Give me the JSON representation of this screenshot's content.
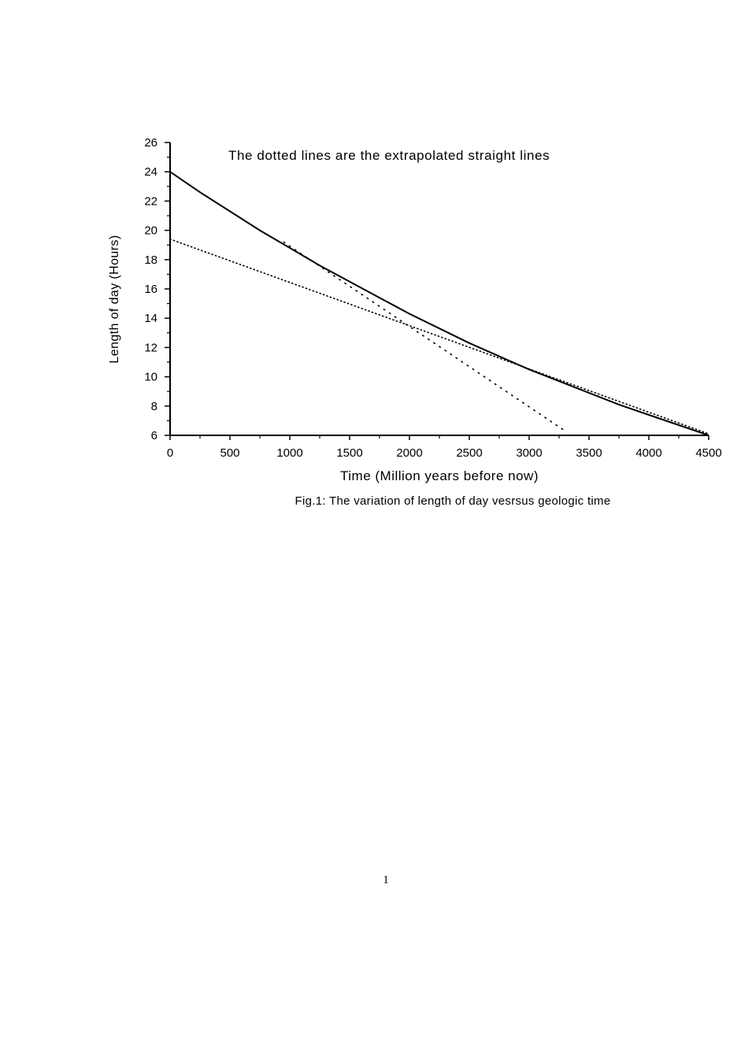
{
  "chart_data": {
    "type": "line",
    "annotation": "The dotted lines are the extrapolated straight lines",
    "xlabel": "Time (Million years before now)",
    "ylabel": "Length of day (Hours)",
    "caption": "Fig.1: The variation of length of day vesrsus geologic time",
    "xlim": [
      0,
      4500
    ],
    "ylim": [
      6,
      26
    ],
    "xticks": [
      0,
      500,
      1000,
      1500,
      2000,
      2500,
      3000,
      3500,
      4000,
      4500
    ],
    "yticks": [
      6,
      8,
      10,
      12,
      14,
      16,
      18,
      20,
      22,
      24,
      26
    ],
    "grid": false,
    "series": [
      {
        "style": "solid",
        "x": [
          0,
          250,
          500,
          750,
          1000,
          1250,
          1500,
          1750,
          2000,
          2250,
          2500,
          2750,
          3000,
          3250,
          3500,
          3750,
          4000,
          4250,
          4500
        ],
        "y": [
          24.0,
          22.6,
          21.3,
          20.0,
          18.8,
          17.6,
          16.5,
          15.4,
          14.3,
          13.3,
          12.3,
          11.4,
          10.5,
          9.7,
          8.9,
          8.1,
          7.4,
          6.7,
          6.0
        ]
      },
      {
        "style": "dotted",
        "x": [
          950,
          3300
        ],
        "y": [
          19.2,
          6.3
        ]
      },
      {
        "style": "dotted",
        "x": [
          0,
          4500
        ],
        "y": [
          19.4,
          6.1
        ]
      }
    ]
  },
  "page": {
    "number": "1"
  }
}
